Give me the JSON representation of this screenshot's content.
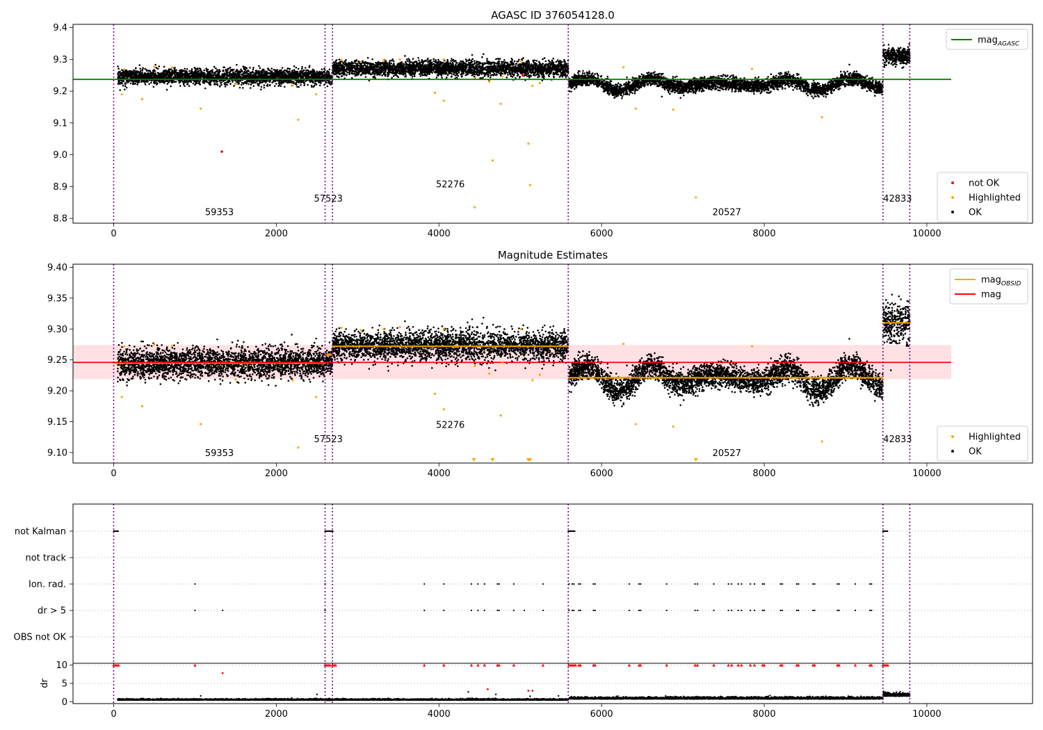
{
  "chart_data": [
    {
      "panel": "top",
      "type": "scatter",
      "title": "AGASC ID 376054128.0",
      "xlim": [
        -500,
        11300
      ],
      "ylim": [
        8.785,
        9.41
      ],
      "xticks": [
        "0",
        "2000",
        "4000",
        "6000",
        "8000",
        "10000"
      ],
      "yticks": [
        "8.8",
        "8.9",
        "9.0",
        "9.1",
        "9.2",
        "9.3",
        "9.4"
      ],
      "mag_agasc": 9.237,
      "mag_agasc_x_range": [
        -500,
        10300
      ],
      "obsid_boundaries": [
        0,
        2600,
        2690,
        5590,
        9460,
        9790
      ],
      "obsid_labels": [
        {
          "text": "59353",
          "x": 1300,
          "y": 8.81
        },
        {
          "text": "57523",
          "x": 2640,
          "y": 8.853
        },
        {
          "text": "52276",
          "x": 4140,
          "y": 8.897
        },
        {
          "text": "20527",
          "x": 7540,
          "y": 8.81
        },
        {
          "text": "42833",
          "x": 9640,
          "y": 8.853
        }
      ],
      "ok_segments": [
        {
          "obsid": "59353",
          "x": [
            50,
            2600
          ],
          "mean": 9.245,
          "spread": 0.012,
          "wave": 0
        },
        {
          "obsid": "57523",
          "x": [
            2605,
            2690
          ],
          "mean": 9.242,
          "spread": 0.01,
          "wave": 0
        },
        {
          "obsid": "52276",
          "x": [
            2690,
            5590
          ],
          "mean": 9.271,
          "spread": 0.012,
          "wave": 0
        },
        {
          "obsid": "20527",
          "x": [
            5600,
            9460
          ],
          "mean": 9.222,
          "spread": 0.01,
          "wave": 0.02
        },
        {
          "obsid": "42833",
          "x": [
            9460,
            9790
          ],
          "mean": 9.31,
          "spread": 0.014,
          "wave": 0
        }
      ],
      "highlighted_points": [
        [
          100,
          9.19
        ],
        [
          130,
          9.268
        ],
        [
          350,
          9.175
        ],
        [
          500,
          9.276
        ],
        [
          720,
          9.275
        ],
        [
          1070,
          9.145
        ],
        [
          1500,
          9.222
        ],
        [
          2200,
          9.218
        ],
        [
          2270,
          9.11
        ],
        [
          2490,
          9.19
        ],
        [
          2800,
          9.298
        ],
        [
          3040,
          9.292
        ],
        [
          3320,
          9.298
        ],
        [
          3520,
          9.3
        ],
        [
          3950,
          9.195
        ],
        [
          4060,
          9.17
        ],
        [
          4060,
          9.3
        ],
        [
          4440,
          9.24
        ],
        [
          4440,
          8.835
        ],
        [
          4620,
          9.23
        ],
        [
          4660,
          8.982
        ],
        [
          4760,
          9.16
        ],
        [
          4780,
          9.246
        ],
        [
          5010,
          9.295
        ],
        [
          5100,
          9.035
        ],
        [
          5120,
          8.905
        ],
        [
          5150,
          9.217
        ],
        [
          5240,
          9.225
        ],
        [
          6270,
          9.275
        ],
        [
          6420,
          9.145
        ],
        [
          6880,
          9.142
        ],
        [
          7160,
          8.866
        ],
        [
          7850,
          9.27
        ],
        [
          8710,
          9.118
        ]
      ],
      "not_ok_points": [
        [
          1330,
          9.01
        ],
        [
          5030,
          9.25
        ]
      ],
      "legend_upper": {
        "entries": [
          {
            "label": "mag",
            "sub": "AGASC"
          }
        ]
      },
      "legend_lower": {
        "entries": [
          {
            "label": "not OK"
          },
          {
            "label": "Highlighted"
          },
          {
            "label": "OK"
          }
        ]
      }
    },
    {
      "panel": "middle",
      "type": "scatter",
      "title": "Magnitude Estimates",
      "xlim": [
        -500,
        11300
      ],
      "ylim": [
        9.083,
        9.405
      ],
      "xticks": [
        "0",
        "2000",
        "4000",
        "6000",
        "8000",
        "10000"
      ],
      "yticks": [
        "9.10",
        "9.15",
        "9.20",
        "9.25",
        "9.30",
        "9.35",
        "9.40"
      ],
      "mag": 9.246,
      "mag_band": [
        9.219,
        9.274
      ],
      "mag_x_range": [
        -500,
        10300
      ],
      "obsid_boundaries": [
        0,
        2600,
        2690,
        5590,
        9460,
        9790
      ],
      "obsid_means": [
        {
          "x": [
            0,
            2600
          ],
          "mag": 9.245
        },
        {
          "x": [
            2600,
            2690
          ],
          "mag": 9.258
        },
        {
          "x": [
            2690,
            5590
          ],
          "mag": 9.272
        },
        {
          "x": [
            5590,
            9460
          ],
          "mag": 9.221
        },
        {
          "x": [
            9460,
            9790
          ],
          "mag": 9.31
        }
      ],
      "obsid_labels": [
        {
          "text": "59353",
          "x": 1300,
          "y": 9.094
        },
        {
          "text": "57523",
          "x": 2640,
          "y": 9.117
        },
        {
          "text": "52276",
          "x": 4140,
          "y": 9.14
        },
        {
          "text": "20527",
          "x": 7540,
          "y": 9.094
        },
        {
          "text": "42833",
          "x": 9640,
          "y": 9.117
        }
      ],
      "ok_segments": [
        {
          "obsid": "59353",
          "x": [
            50,
            2600
          ],
          "mean": 9.245,
          "spread": 0.012,
          "wave": 0
        },
        {
          "obsid": "57523",
          "x": [
            2605,
            2690
          ],
          "mean": 9.248,
          "spread": 0.01,
          "wave": 0
        },
        {
          "obsid": "52276",
          "x": [
            2690,
            5590
          ],
          "mean": 9.273,
          "spread": 0.012,
          "wave": 0
        },
        {
          "obsid": "20527",
          "x": [
            5600,
            9460
          ],
          "mean": 9.221,
          "spread": 0.01,
          "wave": 0.022
        },
        {
          "obsid": "42833",
          "x": [
            9460,
            9790
          ],
          "mean": 9.31,
          "spread": 0.016,
          "wave": 0
        }
      ],
      "highlighted_points": [
        [
          100,
          9.19
        ],
        [
          130,
          9.272
        ],
        [
          350,
          9.175
        ],
        [
          500,
          9.275
        ],
        [
          720,
          9.273
        ],
        [
          1070,
          9.146
        ],
        [
          1500,
          9.218
        ],
        [
          2200,
          9.217
        ],
        [
          2270,
          9.108
        ],
        [
          2490,
          9.19
        ],
        [
          2800,
          9.302
        ],
        [
          3040,
          9.298
        ],
        [
          3320,
          9.3
        ],
        [
          3520,
          9.303
        ],
        [
          3950,
          9.195
        ],
        [
          4060,
          9.17
        ],
        [
          4060,
          9.3
        ],
        [
          4440,
          9.24
        ],
        [
          4620,
          9.228
        ],
        [
          4760,
          9.16
        ],
        [
          4780,
          9.246
        ],
        [
          5010,
          9.3
        ],
        [
          5150,
          9.217
        ],
        [
          5240,
          9.226
        ],
        [
          6270,
          9.276
        ],
        [
          6420,
          9.146
        ],
        [
          6880,
          9.142
        ],
        [
          7850,
          9.272
        ],
        [
          8710,
          9.118
        ]
      ],
      "highlighted_below_range": [
        4430,
        4660,
        5100,
        5120,
        7160
      ],
      "legend_upper": {
        "entries": [
          {
            "label": "mag",
            "sub": "OBSID"
          },
          {
            "label": "mag"
          }
        ]
      },
      "legend_lower": {
        "entries": [
          {
            "label": "Highlighted"
          },
          {
            "label": "OK"
          }
        ]
      }
    },
    {
      "panel": "flags",
      "type": "scatter",
      "xlim": [
        -500,
        11300
      ],
      "categories": [
        "not Kalman",
        "not track",
        "Ion. rad.",
        "dr > 5",
        "OBS not OK"
      ],
      "obsid_boundaries": [
        0,
        2600,
        2690,
        5590,
        9460,
        9790
      ],
      "flag_points": {
        "not Kalman": [
          [
            0,
            60
          ],
          [
            2600,
            2700
          ],
          [
            5590,
            5670
          ],
          [
            9460,
            9520
          ]
        ],
        "not track": [],
        "Ion. rad.": [
          1000,
          2600,
          3820,
          4060,
          4400,
          4480,
          4560,
          4720,
          4740,
          4920,
          5280,
          5600,
          5640,
          5660,
          5720,
          5740,
          5900,
          5920,
          6340,
          6460,
          6480,
          6800,
          7150,
          7180,
          7380,
          7560,
          7600,
          7680,
          7720,
          7830,
          7880,
          7980,
          8000,
          8200,
          8220,
          8400,
          8420,
          8600,
          8620,
          8900,
          8920,
          9120,
          9300,
          9320
        ],
        "dr > 5": [
          1000,
          1340,
          2600,
          3820,
          4060,
          4400,
          4480,
          4560,
          4720,
          4740,
          4920,
          5050,
          5280,
          5600,
          5640,
          5660,
          5720,
          5740,
          5900,
          5920,
          6340,
          6460,
          6480,
          6800,
          7150,
          7180,
          7380,
          7560,
          7600,
          7680,
          7720,
          7830,
          7880,
          7980,
          8000,
          8200,
          8220,
          8400,
          8420,
          8600,
          8620,
          8900,
          8920,
          9120,
          9300,
          9320
        ],
        "OBS not OK": []
      }
    },
    {
      "panel": "dr",
      "type": "scatter",
      "xlim": [
        -500,
        11300
      ],
      "ylim": [
        -0.5,
        10.5
      ],
      "ylabel": "dr",
      "xticks": [
        "0",
        "2000",
        "4000",
        "6000",
        "8000",
        "10000"
      ],
      "yticks": [
        "0",
        "5",
        "10"
      ],
      "obsid_boundaries": [
        0,
        2600,
        2690,
        5590,
        9460,
        9790
      ],
      "ok_segments": [
        {
          "x": [
            50,
            2600
          ],
          "mean": 0.45,
          "spread": 0.15
        },
        {
          "x": [
            2605,
            2690
          ],
          "mean": 0.4,
          "spread": 0.15
        },
        {
          "x": [
            2690,
            5590
          ],
          "mean": 0.45,
          "spread": 0.15
        },
        {
          "x": [
            5600,
            9460
          ],
          "mean": 0.75,
          "spread": 0.25
        },
        {
          "x": [
            9460,
            9790
          ],
          "mean": 1.5,
          "spread": 0.45
        }
      ],
      "ok_outliers": [
        [
          1070,
          1.6
        ],
        [
          2500,
          2.0
        ],
        [
          4360,
          2.7
        ],
        [
          4700,
          2.0
        ],
        [
          5120,
          1.5
        ],
        [
          5470,
          1.6
        ]
      ],
      "not_ok_points": [
        [
          1340,
          7.8
        ],
        [
          4600,
          3.4
        ],
        [
          5100,
          3.0
        ],
        [
          5150,
          3.0
        ]
      ],
      "capped_at_10": [
        0,
        20,
        40,
        60,
        1000,
        2600,
        2620,
        2640,
        2660,
        2690,
        2710,
        2730,
        3820,
        4060,
        4400,
        4480,
        4560,
        4720,
        4740,
        4920,
        5280,
        5600,
        5620,
        5640,
        5660,
        5680,
        5720,
        5740,
        5900,
        5920,
        6340,
        6460,
        6480,
        6800,
        7150,
        7180,
        7380,
        7560,
        7600,
        7680,
        7720,
        7830,
        7880,
        7980,
        8000,
        8200,
        8220,
        8400,
        8420,
        8600,
        8620,
        8900,
        8920,
        9120,
        9300,
        9320,
        9460,
        9480,
        9500,
        9520
      ]
    }
  ],
  "colors": {
    "ok": "#000000",
    "highlighted": "#ffa500",
    "not_ok": "#ff0000",
    "mag_agasc_line": "#008000",
    "mag_line": "#ff0000",
    "mag_band": "#ffe0e3",
    "mag_obsid_line": "#ffa500",
    "obsid_line": "#800080"
  }
}
